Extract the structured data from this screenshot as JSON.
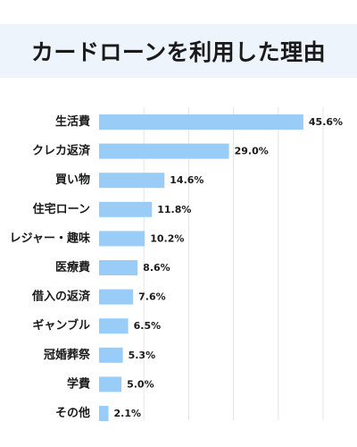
{
  "title": "カードローンを利用した理由",
  "chart_data": {
    "type": "bar",
    "orientation": "horizontal",
    "title": "カードローンを利用した理由",
    "categories": [
      "生活費",
      "クレカ返済",
      "買い物",
      "住宅ローン",
      "レジャー・趣味",
      "医療費",
      "借入の返済",
      "ギャンブル",
      "冠婚葬祭",
      "学費",
      "その他"
    ],
    "values": [
      45.6,
      29.0,
      14.6,
      11.8,
      10.2,
      8.6,
      7.6,
      6.5,
      5.3,
      5.0,
      2.1
    ],
    "value_labels": [
      "45.6%",
      "29.0%",
      "14.6%",
      "11.8%",
      "10.2%",
      "8.6%",
      "7.6%",
      "6.5%",
      "5.3%",
      "5.0%",
      "2.1%"
    ],
    "unit": "%",
    "xlim": [
      0,
      50
    ],
    "grid": true,
    "bar_color": "#99cdf8"
  }
}
